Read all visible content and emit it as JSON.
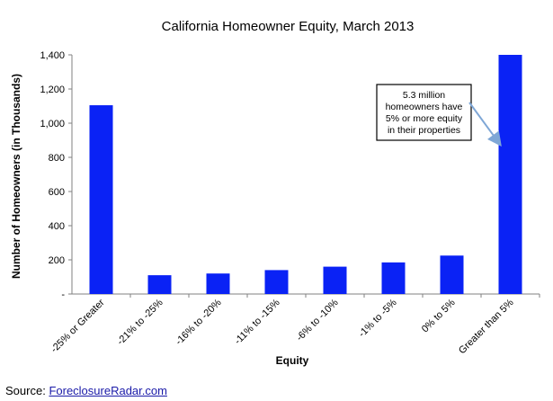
{
  "chart_data": {
    "type": "bar",
    "title": "California Homeowner Equity, March 2013",
    "xlabel": "Equity",
    "ylabel": "Number of Homeowners (in Thousands)",
    "categories": [
      "-25% or Greater",
      "-21% to -25%",
      "-16% to -20%",
      "-11% to -15%",
      "-6% to -10%",
      "-1% to -5%",
      "0% to 5%",
      "Greater than 5%"
    ],
    "values": [
      1105,
      110,
      120,
      140,
      160,
      185,
      225,
      1400
    ],
    "ylim": [
      0,
      1400
    ],
    "yticks": [
      0,
      200,
      400,
      600,
      800,
      1000,
      1200,
      1400
    ],
    "ytick_labels": [
      "-",
      "200",
      "400",
      "600",
      "800",
      "1,000",
      "1,200",
      "1,400"
    ],
    "bar_color": "#0a22f5",
    "grid": false,
    "annotation": {
      "lines": [
        "5.3 million",
        "homeowners have",
        "5% or more equity",
        "in their properties"
      ],
      "target_category": "Greater than 5%",
      "target_value": 880
    }
  },
  "source": {
    "label": "Source:",
    "link_text": "ForeclosureRadar.com"
  }
}
